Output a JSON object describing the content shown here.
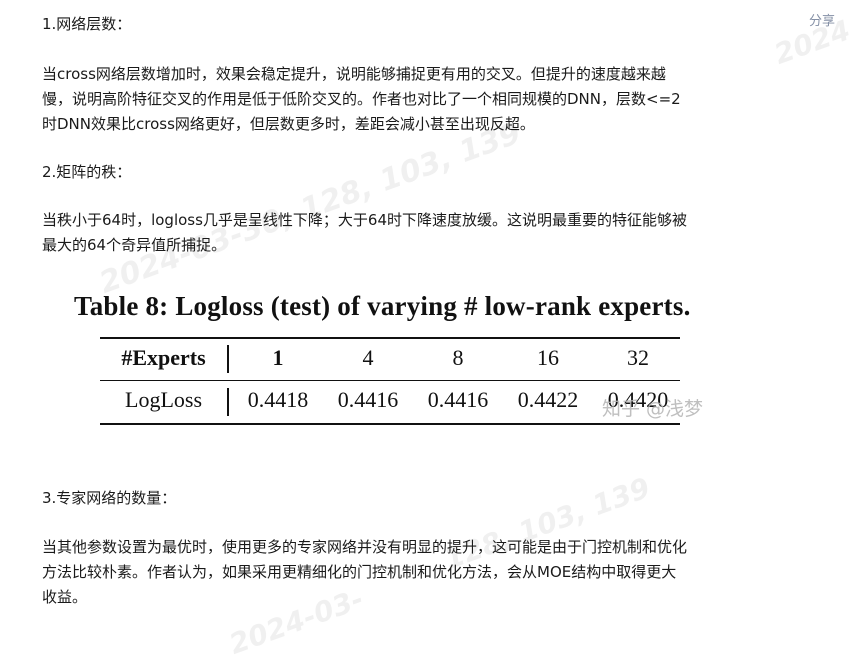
{
  "header": {
    "share_label": "分享"
  },
  "sections": {
    "s1_heading": "1.网络层数：",
    "s1_lines": [
      "当cross网络层数增加时，效果会稳定提升，说明能够捕捉更有用的交叉。但提升的速度越来越",
      "慢，说明高阶特征交叉的作用是低于低阶交叉的。作者也对比了一个相同规模的DNN，层数<=2",
      "时DNN效果比cross网络更好，但层数更多时，差距会减小甚至出现反超。"
    ],
    "s2_heading": "2.矩阵的秩：",
    "s2_lines": [
      "当秩小于64时，logloss几乎是呈线性下降；大于64时下降速度放缓。这说明最重要的特征能够被",
      "最大的64个奇异值所捕捉。"
    ],
    "s3_heading": "3.专家网络的数量：",
    "s3_lines": [
      "当其他参数设置为最优时，使用更多的专家网络并没有明显的提升，这可能是由于门控机制和优化",
      "方法比较朴素。作者认为，如果采用更精细化的门控机制和优化方法，会从MOE结构中取得更大",
      "收益。"
    ]
  },
  "figure": {
    "caption": "Table 8: Logloss (test) of varying # low-rank experts.",
    "header_label": "#Experts",
    "columns": [
      "1",
      "4",
      "8",
      "16",
      "32"
    ],
    "row_label": "LogLoss",
    "values": [
      "0.4418",
      "0.4416",
      "0.4416",
      "0.4422",
      "0.4420"
    ],
    "image_watermark": "知乎 @浅梦"
  },
  "watermarks": [
    "2024",
    "2024-03-30, 128, 103, 139",
    "2024-03-",
    "128, 103, 139",
    "2024-03"
  ]
}
